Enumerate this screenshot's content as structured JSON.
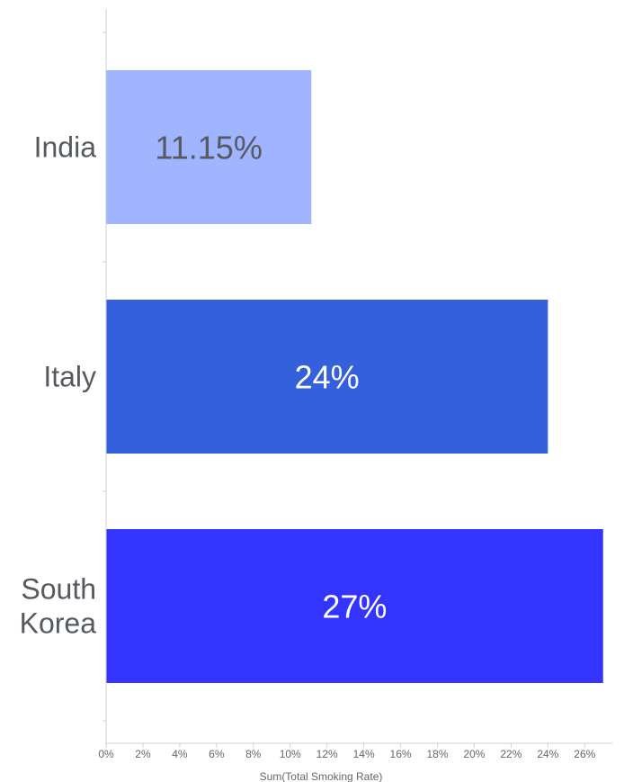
{
  "chart_data": {
    "type": "bar",
    "orientation": "horizontal",
    "categories": [
      "India",
      "Italy",
      "South Korea"
    ],
    "values": [
      11.15,
      24,
      27
    ],
    "value_labels": [
      "11.15%",
      "24%",
      "27%"
    ],
    "bar_colors": [
      "#a0b4ff",
      "#3560dc",
      "#3434ff"
    ],
    "label_colors": [
      "#555a60",
      "#ffffff",
      "#ffffff"
    ],
    "xlabel": "Sum(Total Smoking Rate)",
    "ylabel": "",
    "xlim": [
      0,
      27.5
    ],
    "ticks": [
      0,
      2,
      4,
      6,
      8,
      10,
      12,
      14,
      16,
      18,
      20,
      22,
      24,
      26
    ],
    "tick_labels": [
      "0%",
      "2%",
      "4%",
      "6%",
      "8%",
      "10%",
      "12%",
      "14%",
      "16%",
      "18%",
      "20%",
      "22%",
      "24%",
      "26%"
    ],
    "grid": false,
    "legend": "none"
  }
}
